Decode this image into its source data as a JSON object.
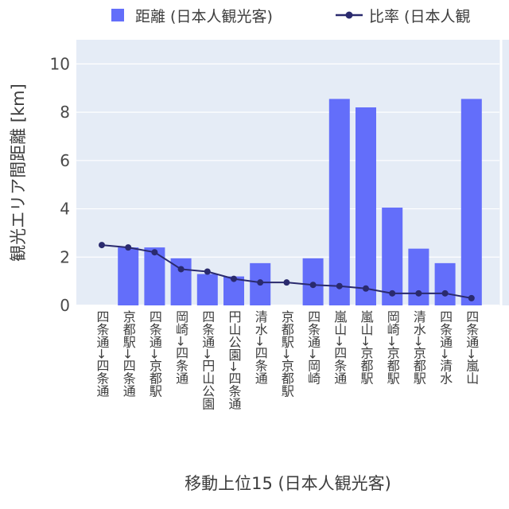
{
  "chart_data": {
    "type": "bar",
    "categories": [
      "四条通→四条通",
      "京都駅→四条通",
      "四条通→京都駅",
      "岡崎→四条通",
      "四条通→円山公園",
      "円山公園→四条通",
      "清水→四条通",
      "京都駅→京都駅",
      "四条通→岡崎",
      "嵐山→四条通",
      "嵐山→京都駅",
      "岡崎→京都駅",
      "清水→京都駅",
      "四条通→清水",
      "四条通→嵐山"
    ],
    "series": [
      {
        "name": "距離 (日本人観光客)",
        "kind": "bar",
        "color": "#636efa",
        "values": [
          0,
          2.4,
          2.4,
          1.95,
          1.3,
          1.2,
          1.75,
          0,
          1.95,
          8.55,
          8.2,
          4.05,
          2.35,
          1.75,
          8.55
        ]
      },
      {
        "name": "比率 (日本人観",
        "kind": "line",
        "color": "#2a2a6e",
        "values": [
          2.5,
          2.4,
          2.2,
          1.5,
          1.4,
          1.1,
          0.95,
          0.95,
          0.85,
          0.8,
          0.7,
          0.5,
          0.5,
          0.5,
          0.3
        ]
      }
    ],
    "xlabel": "移動上位15 (日本人観光客)",
    "ylabel": "観光エリア間距離 [km]",
    "ylim": [
      0,
      11
    ],
    "yticks": [
      0,
      2,
      4,
      6,
      8,
      10
    ],
    "grid": true,
    "legend_position": "top",
    "plot_background": "#e5ecf6",
    "grid_color": "#ffffff"
  }
}
